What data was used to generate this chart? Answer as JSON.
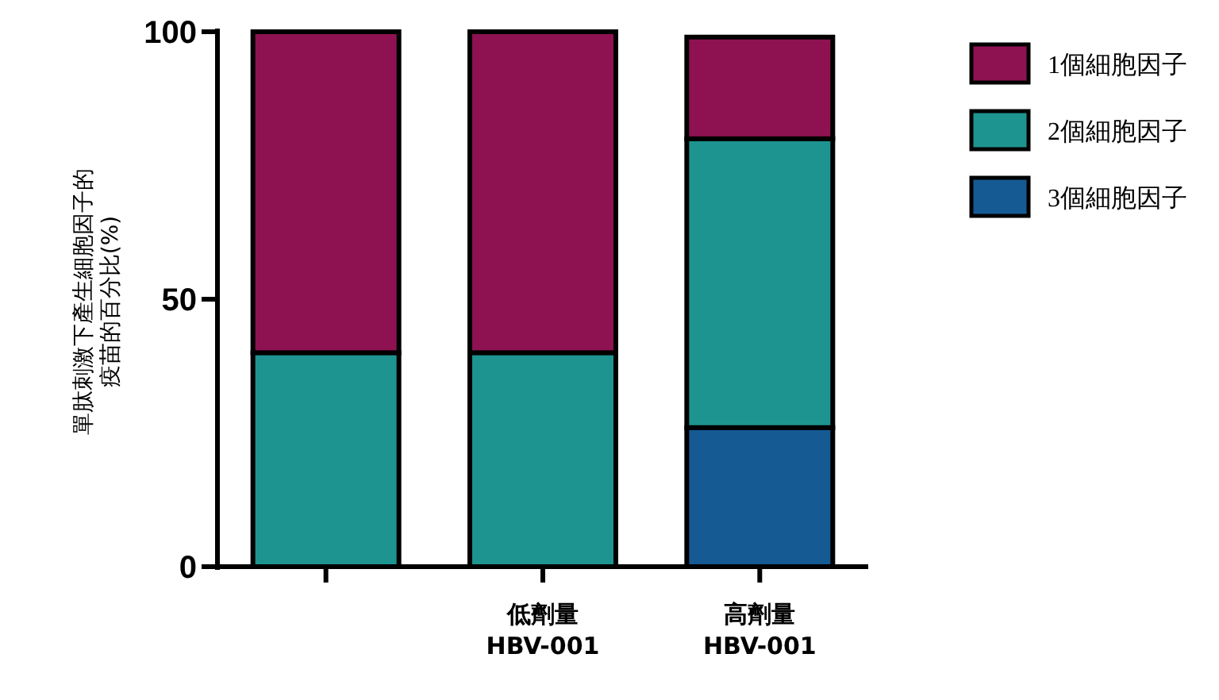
{
  "chart_data": {
    "type": "bar",
    "stacked": true,
    "ylabel": "單肽刺激下產生細胞因子的疫苗的百分比(%)",
    "categories": [
      null,
      "低劑量 HBV-001",
      "高劑量 HBV-001"
    ],
    "series": [
      {
        "name": "3個細胞因子",
        "color": "#155a93",
        "values": [
          0,
          0,
          26
        ]
      },
      {
        "name": "2個細胞因子",
        "color": "#1e9490",
        "values": [
          40,
          40,
          54
        ]
      },
      {
        "name": "1個細胞因子",
        "color": "#8e1252",
        "values": [
          60,
          60,
          19
        ]
      }
    ],
    "ylim": [
      0,
      100
    ],
    "yticks": [
      0,
      50,
      100
    ],
    "legend": "right"
  }
}
